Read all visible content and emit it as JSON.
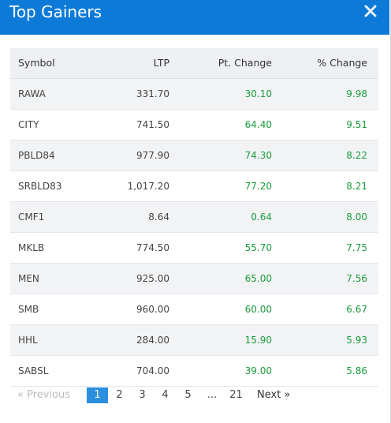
{
  "header": {
    "title": "Top Gainers"
  },
  "table": {
    "columns": [
      "Symbol",
      "LTP",
      "Pt. Change",
      "% Change"
    ],
    "rows": [
      {
        "symbol": "RAWA",
        "ltp": "331.70",
        "pt_change": "30.10",
        "pct_change": "9.98"
      },
      {
        "symbol": "CITY",
        "ltp": "741.50",
        "pt_change": "64.40",
        "pct_change": "9.51"
      },
      {
        "symbol": "PBLD84",
        "ltp": "977.90",
        "pt_change": "74.30",
        "pct_change": "8.22"
      },
      {
        "symbol": "SRBLD83",
        "ltp": "1,017.20",
        "pt_change": "77.20",
        "pct_change": "8.21"
      },
      {
        "symbol": "CMF1",
        "ltp": "8.64",
        "pt_change": "0.64",
        "pct_change": "8.00"
      },
      {
        "symbol": "MKLB",
        "ltp": "774.50",
        "pt_change": "55.70",
        "pct_change": "7.75"
      },
      {
        "symbol": "MEN",
        "ltp": "925.00",
        "pt_change": "65.00",
        "pct_change": "7.56"
      },
      {
        "symbol": "SMB",
        "ltp": "960.00",
        "pt_change": "60.00",
        "pct_change": "6.67"
      },
      {
        "symbol": "HHL",
        "ltp": "284.00",
        "pt_change": "15.90",
        "pct_change": "5.93"
      },
      {
        "symbol": "SABSL",
        "ltp": "704.00",
        "pt_change": "39.00",
        "pct_change": "5.86"
      }
    ]
  },
  "pagination": {
    "previous": "« Previous",
    "pages": [
      "1",
      "2",
      "3",
      "4",
      "5",
      "...",
      "21"
    ],
    "active_page": "1",
    "next": "Next »"
  },
  "colors": {
    "header_bg": "#0d7ad8",
    "positive": "#1a9c3c",
    "active_page": "#2b8fe0"
  },
  "icons": {
    "close": "close-icon"
  }
}
